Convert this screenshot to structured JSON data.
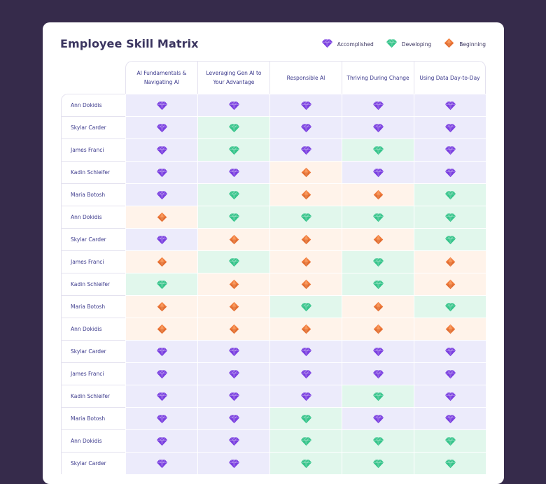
{
  "title": "Employee Skill Matrix",
  "legend": [
    {
      "level": "accomplished",
      "label": "Accomplished",
      "icon": "purple-gem-icon"
    },
    {
      "level": "developing",
      "label": "Developing",
      "icon": "green-gem-icon"
    },
    {
      "level": "beginning",
      "label": "Beginning",
      "icon": "orange-gem-icon"
    }
  ],
  "colors": {
    "accomplished": "#7a3fe0",
    "developing": "#35c48a",
    "beginning": "#f07c3c"
  },
  "skills": [
    "AI Fundamentals & Navigating AI",
    "Leveraging Gen AI to Your Advantage",
    "Responsible AI",
    "Thriving During Change",
    "Using Data Day-to-Day"
  ],
  "rows": [
    {
      "name": "Ann Dokidis",
      "levels": [
        "A",
        "A",
        "A",
        "A",
        "A"
      ]
    },
    {
      "name": "Skylar Carder",
      "levels": [
        "A",
        "D",
        "A",
        "A",
        "A"
      ]
    },
    {
      "name": "James Franci",
      "levels": [
        "A",
        "D",
        "A",
        "D",
        "A"
      ]
    },
    {
      "name": "Kadin Schleifer",
      "levels": [
        "A",
        "A",
        "B",
        "A",
        "A"
      ]
    },
    {
      "name": "Maria Botosh",
      "levels": [
        "A",
        "D",
        "B",
        "B",
        "D"
      ]
    },
    {
      "name": "Ann Dokidis",
      "levels": [
        "B",
        "D",
        "D",
        "D",
        "D"
      ]
    },
    {
      "name": "Skylar Carder",
      "levels": [
        "A",
        "B",
        "B",
        "B",
        "D"
      ]
    },
    {
      "name": "James Franci",
      "levels": [
        "B",
        "D",
        "B",
        "D",
        "B"
      ]
    },
    {
      "name": "Kadin Schleifer",
      "levels": [
        "D",
        "B",
        "B",
        "D",
        "B"
      ]
    },
    {
      "name": "Maria Botosh",
      "levels": [
        "B",
        "B",
        "D",
        "B",
        "D"
      ]
    },
    {
      "name": "Ann Dokidis",
      "levels": [
        "B",
        "B",
        "B",
        "B",
        "B"
      ]
    },
    {
      "name": "Skylar Carder",
      "levels": [
        "A",
        "A",
        "A",
        "A",
        "A"
      ]
    },
    {
      "name": "James Franci",
      "levels": [
        "A",
        "A",
        "A",
        "A",
        "A"
      ]
    },
    {
      "name": "Kadin Schleifer",
      "levels": [
        "A",
        "A",
        "A",
        "D",
        "A"
      ]
    },
    {
      "name": "Maria Botosh",
      "levels": [
        "A",
        "A",
        "D",
        "A",
        "A"
      ]
    },
    {
      "name": "Ann Dokidis",
      "levels": [
        "A",
        "A",
        "D",
        "D",
        "D"
      ]
    },
    {
      "name": "Skylar Carder",
      "levels": [
        "A",
        "A",
        "D",
        "D",
        "D"
      ]
    }
  ]
}
